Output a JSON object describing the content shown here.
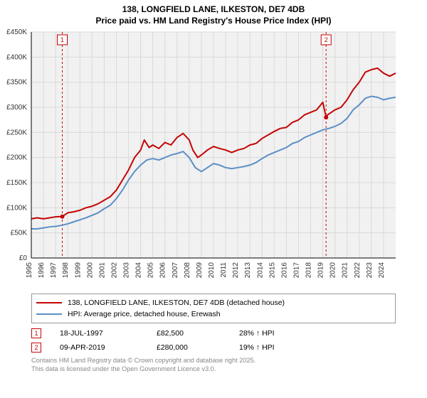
{
  "title_line1": "138, LONGFIELD LANE, ILKESTON, DE7 4DB",
  "title_line2": "Price paid vs. HM Land Registry's House Price Index (HPI)",
  "chart": {
    "type": "line",
    "background_color": "#f1f1f1",
    "grid_color": "#d9d9d9",
    "axis_color": "#000000",
    "plot_color": "#f5f5f5",
    "y": {
      "min": 0,
      "max": 450,
      "tick_step": 50,
      "labels": [
        "£0",
        "£50K",
        "£100K",
        "£150K",
        "£200K",
        "£250K",
        "£300K",
        "£350K",
        "£400K",
        "£450K"
      ],
      "label_fontsize": 10,
      "label_color": "#333333"
    },
    "x": {
      "min": 1995,
      "max": 2025,
      "tick_step": 1,
      "labels": [
        "1995",
        "1996",
        "1997",
        "1998",
        "1999",
        "2000",
        "2001",
        "2002",
        "2003",
        "2004",
        "2005",
        "2006",
        "2007",
        "2008",
        "2009",
        "2010",
        "2011",
        "2012",
        "2013",
        "2014",
        "2015",
        "2016",
        "2017",
        "2018",
        "2019",
        "2020",
        "2021",
        "2022",
        "2023",
        "2024"
      ],
      "label_fontsize": 10,
      "label_color": "#333333",
      "label_rotation": -90
    },
    "series": [
      {
        "name": "138, LONGFIELD LANE, ILKESTON, DE7 4DB (detached house)",
        "color": "#c40404",
        "line_width": 2,
        "points": [
          [
            1995.0,
            78
          ],
          [
            1995.5,
            80
          ],
          [
            1996.0,
            78
          ],
          [
            1996.5,
            80
          ],
          [
            1997.0,
            82
          ],
          [
            1997.55,
            82.5
          ],
          [
            1998.0,
            90
          ],
          [
            1998.5,
            92
          ],
          [
            1999.0,
            95
          ],
          [
            1999.5,
            100
          ],
          [
            2000.0,
            103
          ],
          [
            2000.5,
            108
          ],
          [
            2001.0,
            115
          ],
          [
            2001.5,
            122
          ],
          [
            2002.0,
            135
          ],
          [
            2002.5,
            155
          ],
          [
            2003.0,
            175
          ],
          [
            2003.5,
            200
          ],
          [
            2004.0,
            215
          ],
          [
            2004.3,
            235
          ],
          [
            2004.7,
            220
          ],
          [
            2005.0,
            225
          ],
          [
            2005.5,
            218
          ],
          [
            2006.0,
            230
          ],
          [
            2006.5,
            225
          ],
          [
            2007.0,
            240
          ],
          [
            2007.5,
            248
          ],
          [
            2008.0,
            235
          ],
          [
            2008.3,
            215
          ],
          [
            2008.7,
            200
          ],
          [
            2009.0,
            205
          ],
          [
            2009.5,
            215
          ],
          [
            2010.0,
            222
          ],
          [
            2010.5,
            218
          ],
          [
            2011.0,
            215
          ],
          [
            2011.5,
            210
          ],
          [
            2012.0,
            215
          ],
          [
            2012.5,
            218
          ],
          [
            2013.0,
            225
          ],
          [
            2013.5,
            228
          ],
          [
            2014.0,
            238
          ],
          [
            2014.5,
            245
          ],
          [
            2015.0,
            252
          ],
          [
            2015.5,
            258
          ],
          [
            2016.0,
            260
          ],
          [
            2016.5,
            270
          ],
          [
            2017.0,
            275
          ],
          [
            2017.5,
            285
          ],
          [
            2018.0,
            290
          ],
          [
            2018.5,
            295
          ],
          [
            2019.0,
            310
          ],
          [
            2019.27,
            280
          ],
          [
            2019.4,
            285
          ],
          [
            2020.0,
            295
          ],
          [
            2020.5,
            300
          ],
          [
            2021.0,
            315
          ],
          [
            2021.5,
            335
          ],
          [
            2022.0,
            350
          ],
          [
            2022.5,
            370
          ],
          [
            2023.0,
            375
          ],
          [
            2023.5,
            378
          ],
          [
            2024.0,
            368
          ],
          [
            2024.5,
            362
          ],
          [
            2025.0,
            368
          ]
        ]
      },
      {
        "name": "HPI: Average price, detached house, Erewash",
        "color": "#5b8fc7",
        "line_width": 2,
        "points": [
          [
            1995.0,
            58
          ],
          [
            1995.5,
            58
          ],
          [
            1996.0,
            60
          ],
          [
            1996.5,
            62
          ],
          [
            1997.0,
            63
          ],
          [
            1997.5,
            65
          ],
          [
            1998.0,
            68
          ],
          [
            1998.5,
            72
          ],
          [
            1999.0,
            76
          ],
          [
            1999.5,
            80
          ],
          [
            2000.0,
            85
          ],
          [
            2000.5,
            90
          ],
          [
            2001.0,
            98
          ],
          [
            2001.5,
            105
          ],
          [
            2002.0,
            118
          ],
          [
            2002.5,
            135
          ],
          [
            2003.0,
            155
          ],
          [
            2003.5,
            172
          ],
          [
            2004.0,
            185
          ],
          [
            2004.5,
            195
          ],
          [
            2005.0,
            198
          ],
          [
            2005.5,
            195
          ],
          [
            2006.0,
            200
          ],
          [
            2006.5,
            205
          ],
          [
            2007.0,
            208
          ],
          [
            2007.5,
            212
          ],
          [
            2008.0,
            200
          ],
          [
            2008.5,
            180
          ],
          [
            2009.0,
            172
          ],
          [
            2009.5,
            180
          ],
          [
            2010.0,
            188
          ],
          [
            2010.5,
            185
          ],
          [
            2011.0,
            180
          ],
          [
            2011.5,
            178
          ],
          [
            2012.0,
            180
          ],
          [
            2012.5,
            182
          ],
          [
            2013.0,
            185
          ],
          [
            2013.5,
            190
          ],
          [
            2014.0,
            198
          ],
          [
            2014.5,
            205
          ],
          [
            2015.0,
            210
          ],
          [
            2015.5,
            215
          ],
          [
            2016.0,
            220
          ],
          [
            2016.5,
            228
          ],
          [
            2017.0,
            232
          ],
          [
            2017.5,
            240
          ],
          [
            2018.0,
            245
          ],
          [
            2018.5,
            250
          ],
          [
            2019.0,
            255
          ],
          [
            2019.5,
            258
          ],
          [
            2020.0,
            262
          ],
          [
            2020.5,
            268
          ],
          [
            2021.0,
            278
          ],
          [
            2021.5,
            295
          ],
          [
            2022.0,
            305
          ],
          [
            2022.5,
            318
          ],
          [
            2023.0,
            322
          ],
          [
            2023.5,
            320
          ],
          [
            2024.0,
            315
          ],
          [
            2024.5,
            318
          ],
          [
            2025.0,
            320
          ]
        ]
      }
    ],
    "sale_markers": [
      {
        "label": "1",
        "year": 1997.55,
        "price": 82.5,
        "color": "#c40404"
      },
      {
        "label": "2",
        "year": 2019.27,
        "price": 280,
        "color": "#c40404"
      }
    ],
    "marker_dashed_color": "#c40404",
    "marker_dot_radius": 3
  },
  "legend": {
    "series1_label": "138, LONGFIELD LANE, ILKESTON, DE7 4DB (detached house)",
    "series1_color": "#c40404",
    "series2_label": "HPI: Average price, detached house, Erewash",
    "series2_color": "#5b8fc7"
  },
  "sales": [
    {
      "n": "1",
      "date": "18-JUL-1997",
      "price": "£82,500",
      "hpi": "28% ↑ HPI",
      "color": "#c40404"
    },
    {
      "n": "2",
      "date": "09-APR-2019",
      "price": "£280,000",
      "hpi": "19% ↑ HPI",
      "color": "#c40404"
    }
  ],
  "footer_line1": "Contains HM Land Registry data © Crown copyright and database right 2025.",
  "footer_line2": "This data is licensed under the Open Government Licence v3.0."
}
